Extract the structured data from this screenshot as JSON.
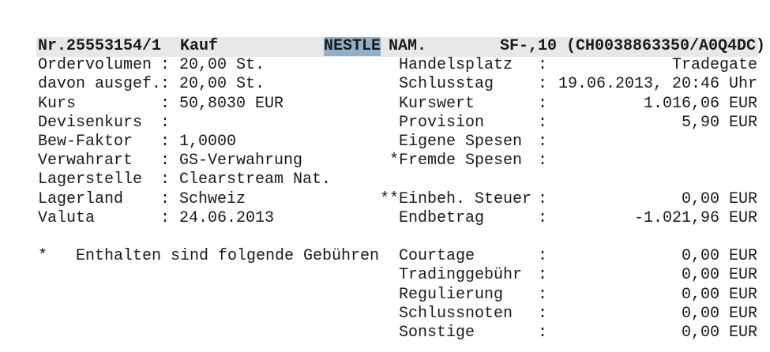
{
  "header": {
    "order_no": "Nr.25553154/1",
    "type": "Kauf",
    "name_highlight": "NESTLE",
    "name_rest": "NAM.",
    "security": "SF-,10 (CH0038863350/A0Q4DC)",
    "highlight_color": "#8fb0c8"
  },
  "left": [
    {
      "label": "Ordervolumen",
      "value": "20,00 St."
    },
    {
      "label": "davon ausgef.",
      "value": "20,00 St."
    },
    {
      "label": "Kurs",
      "value": "50,8030 EUR"
    },
    {
      "label": "Devisenkurs",
      "value": ""
    },
    {
      "label": "Bew-Faktor",
      "value": "1,0000"
    },
    {
      "label": "Verwahrart",
      "value": "GS-Verwahrung"
    },
    {
      "label": "Lagerstelle",
      "value": "Clearstream Nat."
    },
    {
      "label": "Lagerland",
      "value": "Schweiz"
    },
    {
      "label": "Valuta",
      "value": "24.06.2013"
    }
  ],
  "right": [
    {
      "label": "Handelsplatz",
      "value": "Tradegate"
    },
    {
      "label": "Schlusstag",
      "value": "19.06.2013, 20:46 Uhr"
    },
    {
      "label": "Kurswert",
      "value": "1.016,06 EUR"
    },
    {
      "label": "Provision",
      "value": "5,90 EUR"
    },
    {
      "label": "Eigene Spesen",
      "value": ""
    },
    {
      "label": "*Fremde Spesen",
      "value": ""
    },
    {
      "label": "",
      "value": ""
    },
    {
      "label": "**Einbeh. Steuer",
      "value": "0,00 EUR"
    },
    {
      "label": "Endbetrag",
      "value": "-1.021,96 EUR"
    }
  ],
  "footnote": {
    "marker": "*",
    "text": "Enthalten sind folgende Gebühren"
  },
  "fees": [
    {
      "label": "Courtage",
      "value": "0,00 EUR"
    },
    {
      "label": "Tradinggebühr",
      "value": "0,00 EUR"
    },
    {
      "label": "Regulierung",
      "value": "0,00 EUR"
    },
    {
      "label": "Schlussnoten",
      "value": "0,00 EUR"
    },
    {
      "label": "Sonstige",
      "value": "0,00 EUR"
    }
  ],
  "separator": ":"
}
